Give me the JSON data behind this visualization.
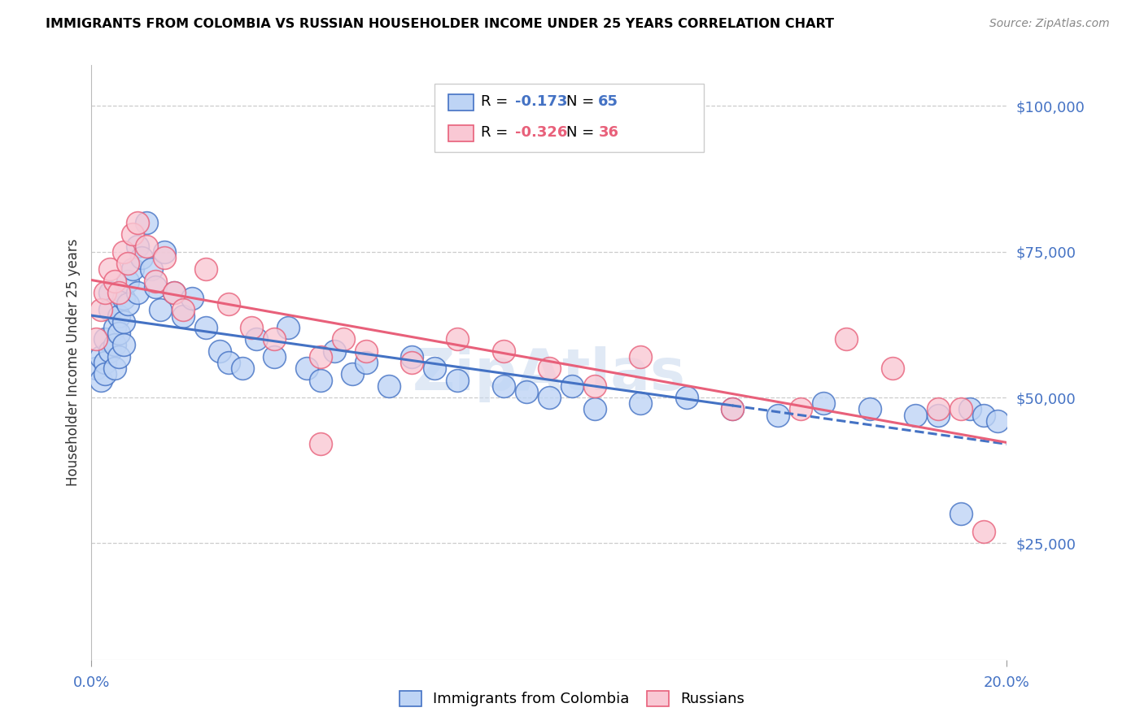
{
  "title": "IMMIGRANTS FROM COLOMBIA VS RUSSIAN HOUSEHOLDER INCOME UNDER 25 YEARS CORRELATION CHART",
  "source": "Source: ZipAtlas.com",
  "ylabel": "Householder Income Under 25 years",
  "ytick_labels": [
    "$25,000",
    "$50,000",
    "$75,000",
    "$100,000"
  ],
  "ytick_values": [
    25000,
    50000,
    75000,
    100000
  ],
  "xmin": 0.0,
  "xmax": 0.2,
  "ymin": 5000,
  "ymax": 107000,
  "legend_r1_val": "-0.173",
  "legend_n1_val": "65",
  "legend_r2_val": "-0.326",
  "legend_n2_val": "36",
  "colombia_color": "#bed4f5",
  "russia_color": "#f9c8d4",
  "trendline_colombia_color": "#4472c4",
  "trendline_russia_color": "#e8607a",
  "label_color": "#4472c4",
  "watermark": "ZipAtlas",
  "colombia_x": [
    0.001,
    0.002,
    0.002,
    0.003,
    0.003,
    0.003,
    0.004,
    0.004,
    0.004,
    0.005,
    0.005,
    0.005,
    0.006,
    0.006,
    0.006,
    0.007,
    0.007,
    0.007,
    0.008,
    0.008,
    0.009,
    0.01,
    0.01,
    0.011,
    0.012,
    0.013,
    0.014,
    0.015,
    0.016,
    0.018,
    0.02,
    0.022,
    0.025,
    0.028,
    0.03,
    0.033,
    0.036,
    0.04,
    0.043,
    0.047,
    0.05,
    0.053,
    0.057,
    0.06,
    0.065,
    0.07,
    0.075,
    0.08,
    0.09,
    0.095,
    0.1,
    0.105,
    0.11,
    0.12,
    0.13,
    0.14,
    0.15,
    0.16,
    0.17,
    0.18,
    0.185,
    0.19,
    0.192,
    0.195,
    0.198
  ],
  "colombia_y": [
    55000,
    57000,
    53000,
    56000,
    54000,
    60000,
    68000,
    65000,
    58000,
    62000,
    59000,
    55000,
    64000,
    61000,
    57000,
    67000,
    63000,
    59000,
    70000,
    66000,
    72000,
    76000,
    68000,
    74000,
    80000,
    72000,
    69000,
    65000,
    75000,
    68000,
    64000,
    67000,
    62000,
    58000,
    56000,
    55000,
    60000,
    57000,
    62000,
    55000,
    53000,
    58000,
    54000,
    56000,
    52000,
    57000,
    55000,
    53000,
    52000,
    51000,
    50000,
    52000,
    48000,
    49000,
    50000,
    48000,
    47000,
    49000,
    48000,
    47000,
    47000,
    30000,
    48000,
    47000,
    46000
  ],
  "russia_x": [
    0.001,
    0.002,
    0.003,
    0.004,
    0.005,
    0.006,
    0.007,
    0.008,
    0.009,
    0.01,
    0.012,
    0.014,
    0.016,
    0.018,
    0.02,
    0.025,
    0.03,
    0.035,
    0.04,
    0.05,
    0.055,
    0.06,
    0.07,
    0.08,
    0.09,
    0.1,
    0.11,
    0.12,
    0.14,
    0.155,
    0.165,
    0.175,
    0.185,
    0.19,
    0.195,
    0.05
  ],
  "russia_y": [
    60000,
    65000,
    68000,
    72000,
    70000,
    68000,
    75000,
    73000,
    78000,
    80000,
    76000,
    70000,
    74000,
    68000,
    65000,
    72000,
    66000,
    62000,
    60000,
    57000,
    60000,
    58000,
    56000,
    60000,
    58000,
    55000,
    52000,
    57000,
    48000,
    48000,
    60000,
    55000,
    48000,
    48000,
    27000,
    42000
  ]
}
